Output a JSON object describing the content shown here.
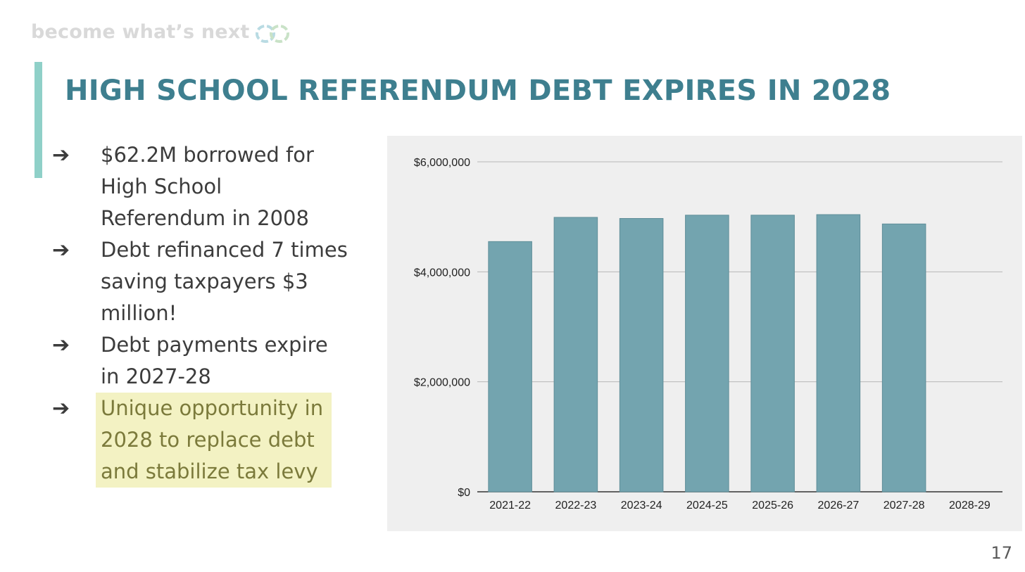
{
  "slide": {
    "tagline": "become what’s next",
    "title": "HIGH SCHOOL REFERENDUM DEBT EXPIRES IN 2028",
    "page_number": "17",
    "colors": {
      "title": "#3e7f8f",
      "accent_bar": "#8fd0c8",
      "bar": "#73a4af",
      "highlight_bg": "#f3f2c3",
      "highlight_text": "#7b7a3b",
      "chart_bg": "#efefef"
    },
    "icons": [
      "infinity-logo-icon",
      "arrow-right-icon"
    ]
  },
  "bullets": [
    {
      "arrow": "➔",
      "text": "$62.2M borrowed for High School Referendum in 2008",
      "highlight": false
    },
    {
      "arrow": "➔",
      "text": "Debt refinanced 7 times saving taxpayers $3 million!",
      "highlight": false
    },
    {
      "arrow": "➔",
      "text": "Debt payments expire in 2027-28",
      "highlight": false
    },
    {
      "arrow": "➔",
      "text": "Unique opportunity in 2028 to replace debt and stabilize tax levy",
      "highlight": true
    }
  ],
  "chart_data": {
    "type": "bar",
    "categories": [
      "2021-22",
      "2022-23",
      "2023-24",
      "2024-25",
      "2025-26",
      "2026-27",
      "2027-28",
      "2028-29"
    ],
    "series": [
      {
        "values": [
          4550000,
          4990000,
          4970000,
          5030000,
          5030000,
          5040000,
          4870000,
          0
        ]
      }
    ],
    "ylim": [
      0,
      6000000
    ],
    "yticks": [
      0,
      2000000,
      4000000,
      6000000
    ],
    "ytick_labels": [
      "$0",
      "$2,000,000",
      "$4,000,000",
      "$6,000,000"
    ],
    "title": "",
    "xlabel": "",
    "ylabel": "",
    "grid": true,
    "legend": "none"
  }
}
